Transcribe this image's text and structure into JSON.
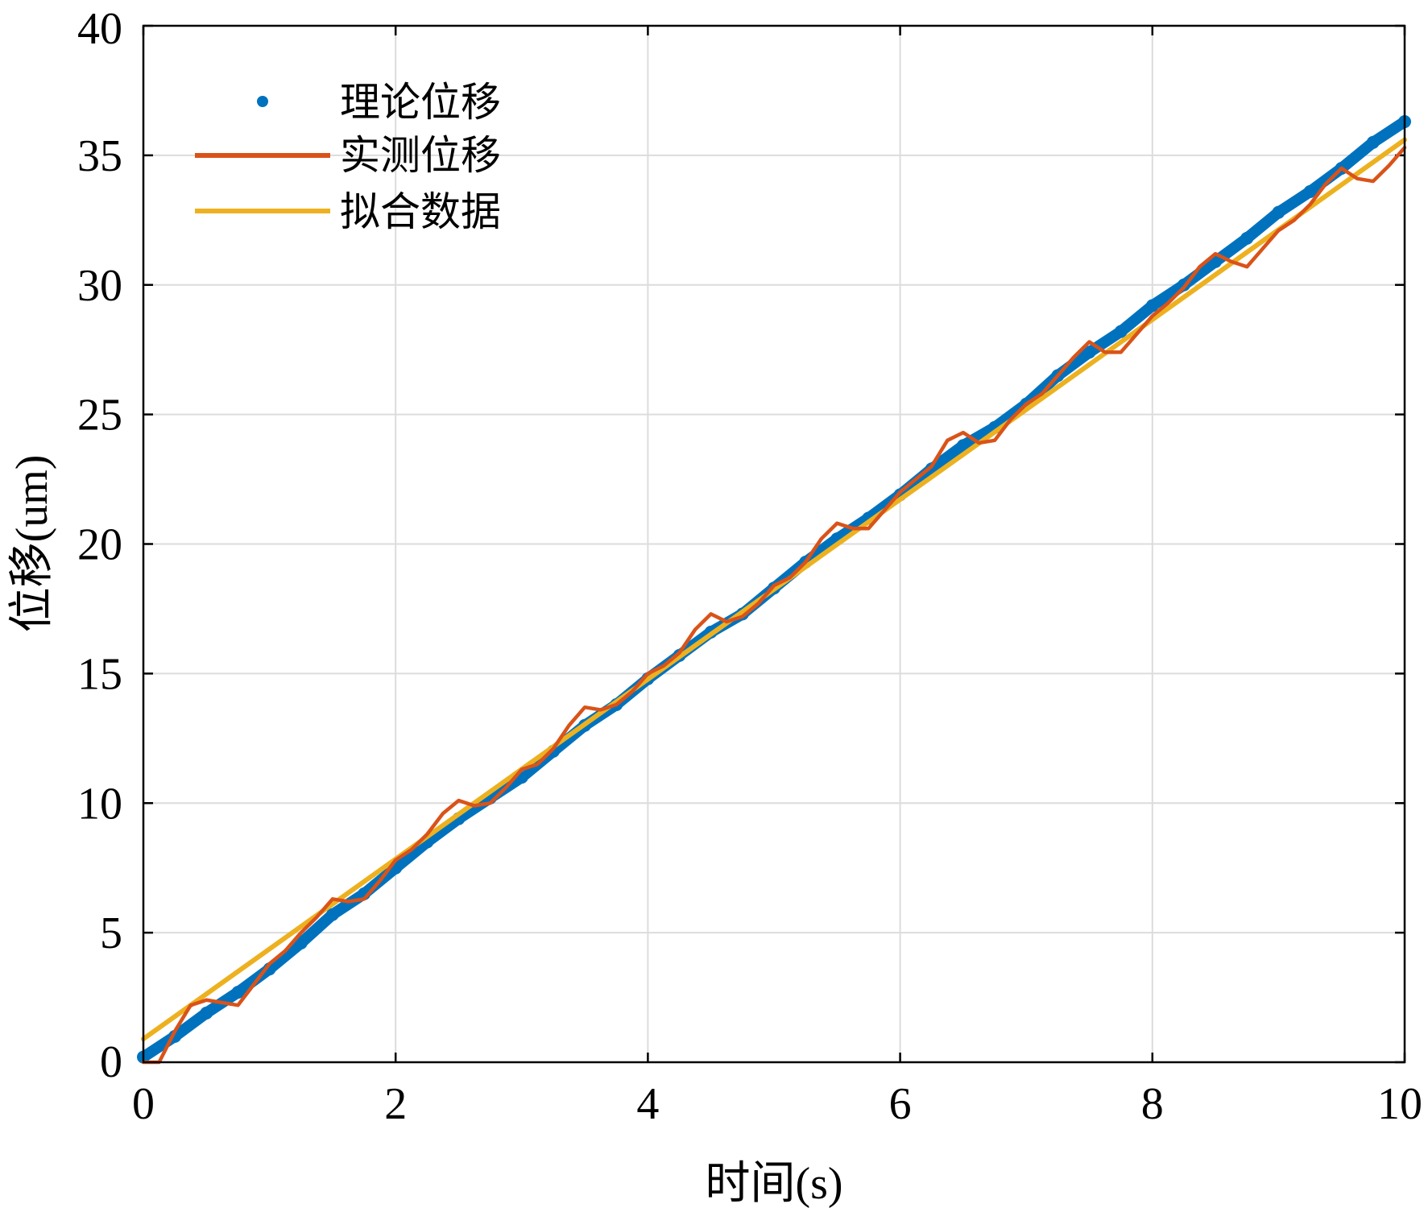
{
  "chart_data": {
    "type": "line",
    "title": "",
    "xlabel": "时间(s)",
    "ylabel": "位移(um)",
    "xlim": [
      0,
      10
    ],
    "ylim": [
      0,
      40
    ],
    "xticks": [
      0,
      2,
      4,
      6,
      8,
      10
    ],
    "yticks": [
      0,
      5,
      10,
      15,
      20,
      25,
      30,
      35,
      40
    ],
    "grid": true,
    "legend_position": "top-left",
    "series": [
      {
        "name": "理论位移",
        "style": "dots",
        "color": "#0072BD",
        "x": [
          0.0,
          0.25,
          0.5,
          0.75,
          1.0,
          1.25,
          1.5,
          1.75,
          2.0,
          2.25,
          2.5,
          2.75,
          3.0,
          3.25,
          3.5,
          3.75,
          4.0,
          4.25,
          4.5,
          4.75,
          5.0,
          5.25,
          5.5,
          5.75,
          6.0,
          6.25,
          6.5,
          6.75,
          7.0,
          7.25,
          7.5,
          7.75,
          8.0,
          8.25,
          8.5,
          8.75,
          9.0,
          9.25,
          9.5,
          9.75,
          10.0
        ],
        "values": [
          0.2,
          1.0,
          1.9,
          2.7,
          3.6,
          4.6,
          5.7,
          6.5,
          7.5,
          8.5,
          9.4,
          10.2,
          11.0,
          12.0,
          13.0,
          13.8,
          14.8,
          15.7,
          16.6,
          17.3,
          18.3,
          19.3,
          20.2,
          21.0,
          21.9,
          22.9,
          23.8,
          24.5,
          25.4,
          26.5,
          27.4,
          28.2,
          29.2,
          30.0,
          30.9,
          31.8,
          32.8,
          33.6,
          34.5,
          35.5,
          36.3
        ]
      },
      {
        "name": "实测位移",
        "style": "line",
        "color": "#D95319",
        "x": [
          0.0,
          0.125,
          0.25,
          0.375,
          0.5,
          0.625,
          0.75,
          0.875,
          1.0,
          1.125,
          1.25,
          1.375,
          1.5,
          1.625,
          1.75,
          1.875,
          2.0,
          2.125,
          2.25,
          2.375,
          2.5,
          2.625,
          2.75,
          2.875,
          3.0,
          3.125,
          3.25,
          3.375,
          3.5,
          3.625,
          3.75,
          3.875,
          4.0,
          4.125,
          4.25,
          4.375,
          4.5,
          4.625,
          4.75,
          4.875,
          5.0,
          5.125,
          5.25,
          5.375,
          5.5,
          5.625,
          5.75,
          5.875,
          6.0,
          6.125,
          6.25,
          6.375,
          6.5,
          6.625,
          6.75,
          6.875,
          7.0,
          7.125,
          7.25,
          7.375,
          7.5,
          7.625,
          7.75,
          7.875,
          8.0,
          8.125,
          8.25,
          8.375,
          8.5,
          8.625,
          8.75,
          8.875,
          9.0,
          9.125,
          9.25,
          9.375,
          9.5,
          9.625,
          9.75,
          9.875,
          10.0
        ],
        "values": [
          0.0,
          0.0,
          1.2,
          2.2,
          2.4,
          2.3,
          2.2,
          3.0,
          3.8,
          4.3,
          5.0,
          5.6,
          6.3,
          6.2,
          6.3,
          7.0,
          7.8,
          8.2,
          8.8,
          9.6,
          10.1,
          9.9,
          10.0,
          10.6,
          11.3,
          11.5,
          12.1,
          13.0,
          13.7,
          13.6,
          13.8,
          14.3,
          15.0,
          15.3,
          15.8,
          16.7,
          17.3,
          17.0,
          17.2,
          17.7,
          18.4,
          18.7,
          19.3,
          20.2,
          20.8,
          20.6,
          20.6,
          21.3,
          22.0,
          22.5,
          23.0,
          24.0,
          24.3,
          23.9,
          24.0,
          24.8,
          25.4,
          25.8,
          26.5,
          27.2,
          27.8,
          27.4,
          27.4,
          28.1,
          28.8,
          29.3,
          29.9,
          30.7,
          31.2,
          30.9,
          30.7,
          31.4,
          32.1,
          32.5,
          33.1,
          33.9,
          34.5,
          34.1,
          34.0,
          34.6,
          35.3
        ]
      },
      {
        "name": "拟合数据",
        "style": "line",
        "color": "#EDB120",
        "x": [
          0,
          10
        ],
        "values": [
          0.9,
          35.6
        ]
      }
    ]
  }
}
